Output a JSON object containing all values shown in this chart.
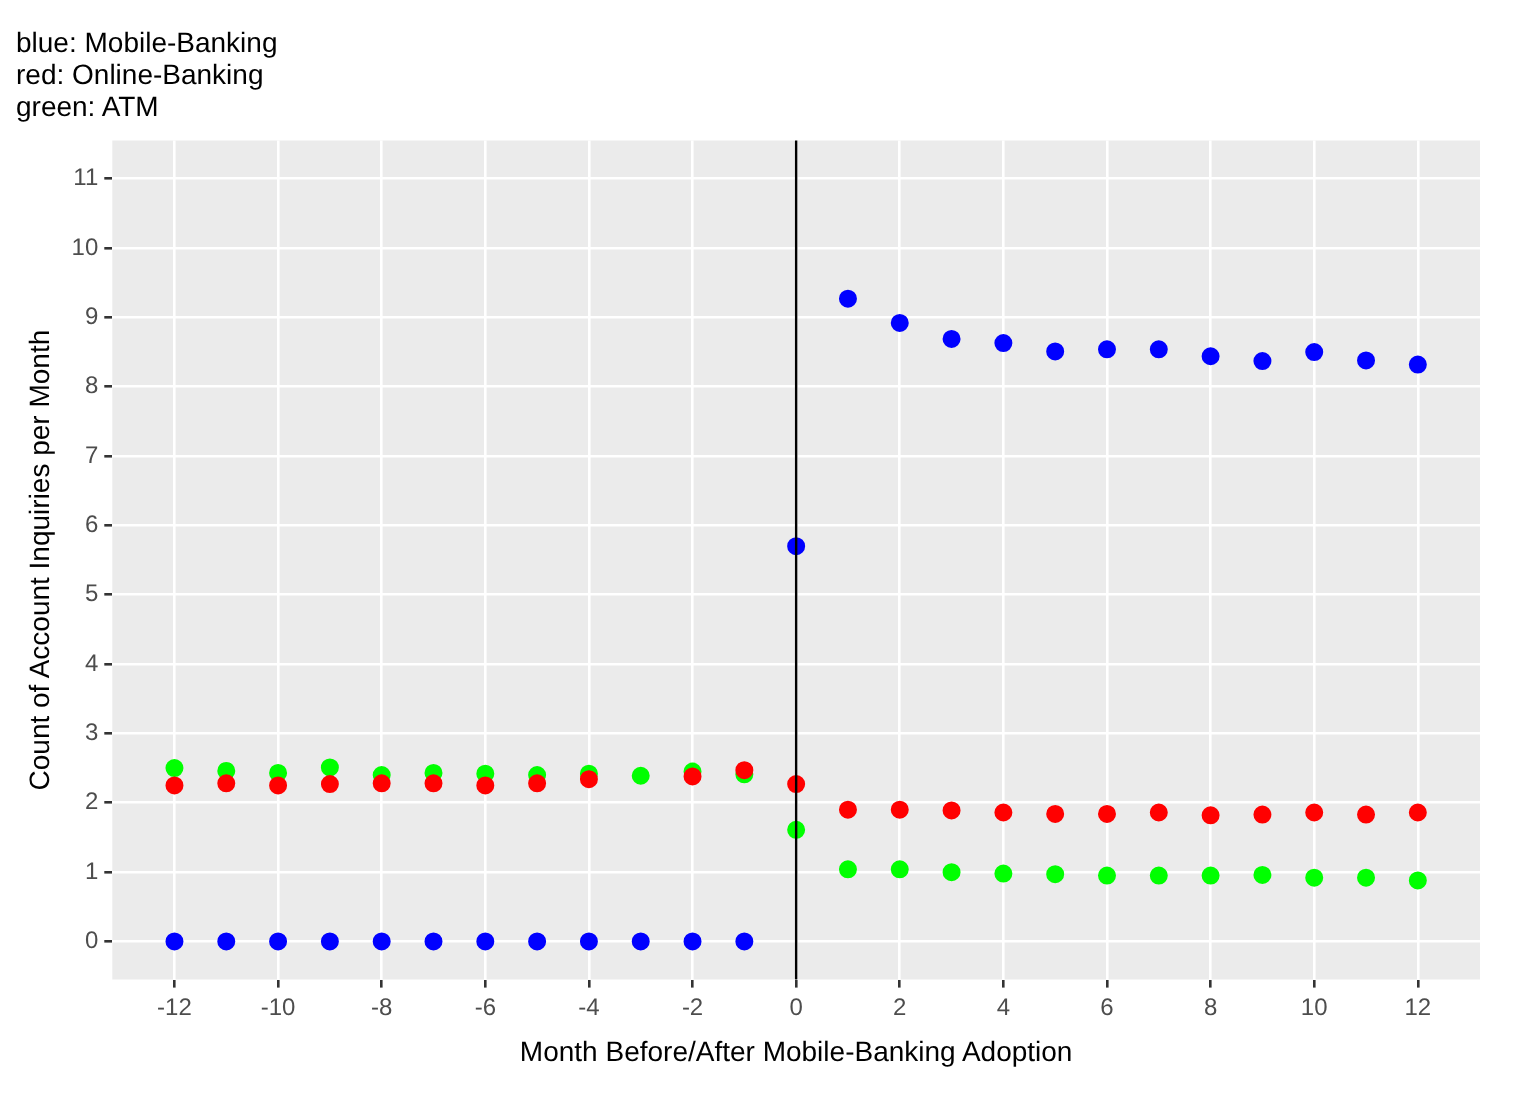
{
  "chart_data": {
    "type": "scatter",
    "title": "blue: Mobile-Banking\nred: Online-Banking\ngreen: ATM",
    "xlabel": "Month Before/After Mobile-Banking Adoption",
    "ylabel": "Count of Account Inquiries per Month",
    "x": [
      -12,
      -11,
      -10,
      -9,
      -8,
      -7,
      -6,
      -5,
      -4,
      -3,
      -2,
      -1,
      0,
      1,
      2,
      3,
      4,
      5,
      6,
      7,
      8,
      9,
      10,
      11,
      12
    ],
    "series": [
      {
        "color": "#ff0000",
        "values": [
          2.25,
          2.28,
          2.25,
          2.27,
          2.28,
          2.28,
          2.25,
          2.28,
          2.34,
          null,
          2.38,
          2.47,
          2.27,
          1.9,
          1.9,
          1.89,
          1.86,
          1.84,
          1.84,
          1.86,
          1.82,
          1.83,
          1.86,
          1.83,
          1.86
        ]
      },
      {
        "color": "#00ff00",
        "values": [
          2.5,
          2.46,
          2.43,
          2.51,
          2.4,
          2.43,
          2.42,
          2.4,
          2.42,
          2.39,
          2.45,
          2.41,
          1.61,
          1.04,
          1.04,
          1.0,
          0.98,
          0.97,
          0.95,
          0.95,
          0.95,
          0.96,
          0.92,
          0.92,
          0.88
        ]
      },
      {
        "color": "#0000ff",
        "values": [
          0,
          0,
          0,
          0,
          0,
          0,
          0,
          0,
          0,
          0,
          0,
          0,
          5.7,
          9.27,
          8.92,
          8.69,
          8.63,
          8.51,
          8.54,
          8.54,
          8.44,
          8.37,
          8.5,
          8.38,
          8.32
        ]
      }
    ],
    "xlim": [
      -13.2,
      13.2
    ],
    "xticks": [
      -12,
      -10,
      -8,
      -6,
      -4,
      -2,
      0,
      2,
      4,
      6,
      8,
      10,
      12
    ],
    "ylim": [
      -0.55,
      11.55
    ],
    "yticks": [
      0,
      1,
      2,
      3,
      4,
      5,
      6,
      7,
      8,
      9,
      10,
      11
    ],
    "ref_lines": [
      {
        "axis": "x",
        "value": 0,
        "color": "#000000"
      }
    ],
    "grid": true,
    "legend": false,
    "marker": "circle"
  }
}
